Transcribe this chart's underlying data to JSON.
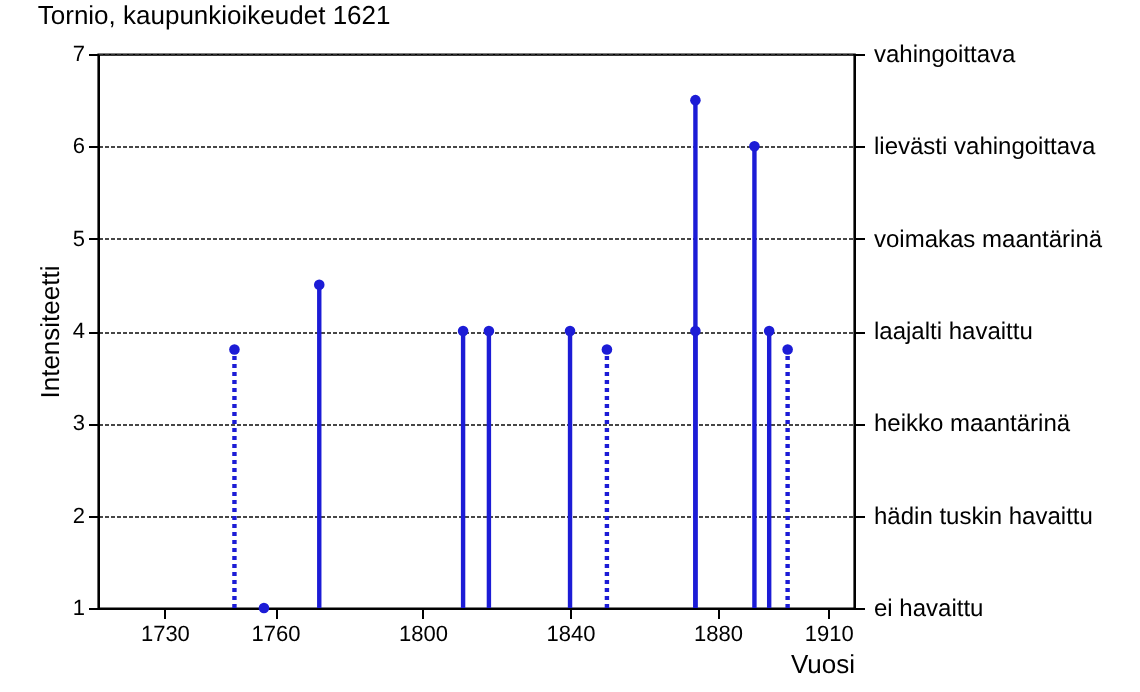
{
  "chart_data": {
    "type": "lollipop",
    "title": "Tornio, kaupunkioikeudet 1621",
    "xlabel": "Vuosi",
    "ylabel": "Intensiteetti",
    "series": [
      {
        "color": "#1c1cd6",
        "line_style": "solid",
        "x": [
          1757,
          1772,
          1811,
          1818,
          1840,
          1874,
          1874,
          1890,
          1894
        ],
        "values": [
          1,
          4.5,
          4,
          4,
          4,
          6.5,
          4,
          6,
          4
        ]
      },
      {
        "color": "#1c1cd6",
        "line_style": "dotted",
        "x": [
          1749,
          1850,
          1899
        ],
        "values": [
          3.8,
          3.8,
          3.8
        ]
      }
    ],
    "marker": "circle",
    "grid": "y",
    "xlim": [
      1712,
      1917
    ],
    "xticks": [
      1730,
      1760,
      1800,
      1840,
      1880,
      1910
    ],
    "ylim": [
      1,
      7
    ],
    "yticks": [
      1,
      2,
      3,
      4,
      5,
      6,
      7
    ],
    "annotations": [
      "vahingoittava",
      "lievästi vahingoittava",
      "voimakas maantärinä",
      "laajalti havaittu",
      "heikko maantärinä",
      "hädin tuskin havaittu",
      "ei havaittu"
    ]
  }
}
